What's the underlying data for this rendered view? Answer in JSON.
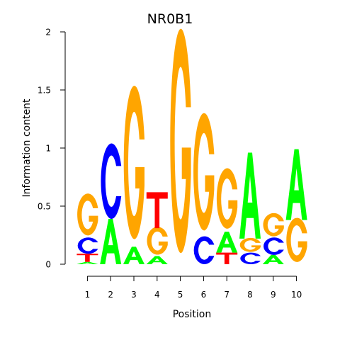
{
  "chart_data": {
    "type": "sequence-logo",
    "title": "NR0B1",
    "xlabel": "Position",
    "ylabel": "Information content",
    "ylim": [
      0,
      2
    ],
    "yticks": [
      {
        "value": 0,
        "label": "0"
      },
      {
        "value": 0.5,
        "label": "0.5"
      },
      {
        "value": 1,
        "label": "1"
      },
      {
        "value": 1.5,
        "label": "1.5"
      },
      {
        "value": 2,
        "label": "2"
      }
    ],
    "positions": [
      "1",
      "2",
      "3",
      "4",
      "5",
      "6",
      "7",
      "8",
      "9",
      "10"
    ],
    "colors": {
      "A": "#00ff00",
      "C": "#0000ff",
      "G": "#ffa500",
      "T": "#ff0000"
    },
    "stacks": [
      [
        {
          "letter": "A",
          "value": 0.02
        },
        {
          "letter": "T",
          "value": 0.07
        },
        {
          "letter": "C",
          "value": 0.14
        },
        {
          "letter": "G",
          "value": 0.36
        }
      ],
      [
        {
          "letter": "A",
          "value": 0.39
        },
        {
          "letter": "C",
          "value": 0.65
        }
      ],
      [
        {
          "letter": "A",
          "value": 0.15
        },
        {
          "letter": "G",
          "value": 1.32
        }
      ],
      [
        {
          "letter": "A",
          "value": 0.07
        },
        {
          "letter": "G",
          "value": 0.24
        },
        {
          "letter": "T",
          "value": 0.31
        }
      ],
      [
        {
          "letter": "G",
          "value": 1.93
        }
      ],
      [
        {
          "letter": "C",
          "value": 0.24
        },
        {
          "letter": "G",
          "value": 1.01
        }
      ],
      [
        {
          "letter": "T",
          "value": 0.1
        },
        {
          "letter": "A",
          "value": 0.18
        },
        {
          "letter": "G",
          "value": 0.52
        }
      ],
      [
        {
          "letter": "C",
          "value": 0.1
        },
        {
          "letter": "G",
          "value": 0.12
        },
        {
          "letter": "A",
          "value": 0.74
        }
      ],
      [
        {
          "letter": "A",
          "value": 0.08
        },
        {
          "letter": "C",
          "value": 0.15
        },
        {
          "letter": "G",
          "value": 0.2
        }
      ],
      [
        {
          "letter": "G",
          "value": 0.38
        },
        {
          "letter": "A",
          "value": 0.61
        }
      ]
    ]
  }
}
